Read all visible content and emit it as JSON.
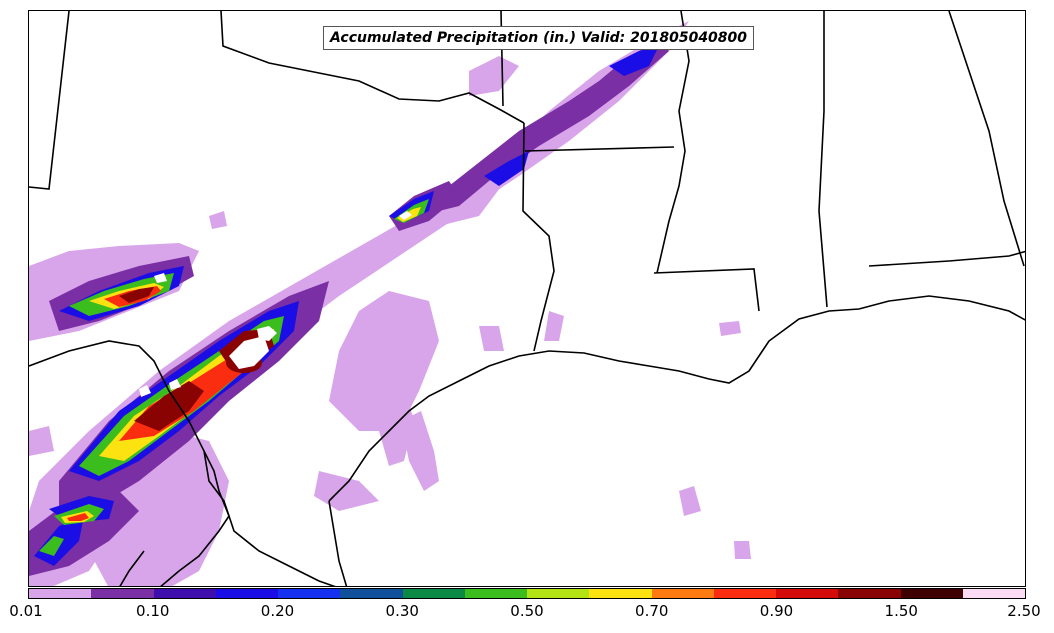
{
  "title": "Accumulated Precipitation (in.) Valid: 201805040800",
  "legend": {
    "colors": [
      "#d8a4ea",
      "#7b2fa4",
      "#3f0fae",
      "#1a0de6",
      "#1530ee",
      "#10509a",
      "#0b8a46",
      "#3cbd1e",
      "#b3e314",
      "#fde212",
      "#ff7a10",
      "#fb2d10",
      "#d30b0b",
      "#8a0303",
      "#3e0202",
      "#fcdcf5"
    ],
    "tick_labels": [
      "0.01",
      "0.10",
      "0.20",
      "0.30",
      "0.50",
      "0.70",
      "0.90",
      "1.50",
      "2.50"
    ]
  }
}
